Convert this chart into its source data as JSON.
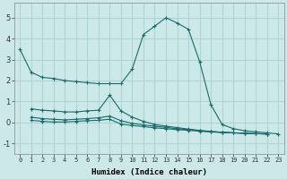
{
  "xlabel": "Humidex (Indice chaleur)",
  "ylabel": "",
  "background_color": "#cce8e8",
  "grid_color": "#aed4d4",
  "line_color": "#1a6b6b",
  "xlim": [
    -0.5,
    23.5
  ],
  "ylim": [
    -1.5,
    5.7
  ],
  "xticks": [
    0,
    1,
    2,
    3,
    4,
    5,
    6,
    7,
    8,
    9,
    10,
    11,
    12,
    13,
    14,
    15,
    16,
    17,
    18,
    19,
    20,
    21,
    22,
    23
  ],
  "yticks": [
    -1,
    0,
    1,
    2,
    3,
    4,
    5
  ],
  "series": [
    [
      3.5,
      2.4,
      2.15,
      2.1,
      2.0,
      1.95,
      1.9,
      1.85,
      1.85,
      1.85,
      2.55,
      4.2,
      4.6,
      5.0,
      4.75,
      4.45,
      2.9,
      0.85,
      -0.1,
      -0.3,
      -0.4,
      -0.45,
      -0.5,
      -0.55
    ],
    [
      0.65,
      0.58,
      0.55,
      0.5,
      0.5,
      0.55,
      0.58,
      1.3,
      0.55,
      0.25,
      0.05,
      -0.1,
      -0.18,
      -0.25,
      -0.32,
      -0.38,
      -0.43,
      -0.48,
      -0.5,
      -0.52,
      -0.54,
      -0.55
    ],
    [
      0.25,
      0.18,
      0.15,
      0.12,
      0.15,
      0.18,
      0.22,
      0.3,
      0.08,
      -0.05,
      -0.12,
      -0.18,
      -0.24,
      -0.3,
      -0.35,
      -0.4,
      -0.44,
      -0.47,
      -0.5,
      -0.52,
      -0.54,
      -0.55
    ],
    [
      0.1,
      0.05,
      0.02,
      0.02,
      0.05,
      0.08,
      0.1,
      0.15,
      -0.08,
      -0.15,
      -0.2,
      -0.26,
      -0.3,
      -0.35,
      -0.38,
      -0.42,
      -0.46,
      -0.48,
      -0.5,
      -0.52,
      -0.54,
      -0.56
    ]
  ],
  "series_x": [
    [
      0,
      1,
      2,
      3,
      4,
      5,
      6,
      7,
      8,
      9,
      10,
      11,
      12,
      13,
      14,
      15,
      16,
      17,
      18,
      19,
      20,
      21,
      22,
      23
    ],
    [
      1,
      2,
      3,
      4,
      5,
      6,
      7,
      8,
      9,
      10,
      11,
      12,
      13,
      14,
      15,
      16,
      17,
      18,
      19,
      20,
      21,
      22
    ],
    [
      1,
      2,
      3,
      4,
      5,
      6,
      7,
      8,
      9,
      10,
      11,
      12,
      13,
      14,
      15,
      16,
      17,
      18,
      19,
      20,
      21,
      22
    ],
    [
      1,
      2,
      3,
      4,
      5,
      6,
      7,
      8,
      9,
      10,
      11,
      12,
      13,
      14,
      15,
      16,
      17,
      18,
      19,
      20,
      21,
      22
    ]
  ],
  "xlabel_fontsize": 6.5,
  "xtick_fontsize": 5.0,
  "ytick_fontsize": 6.0
}
